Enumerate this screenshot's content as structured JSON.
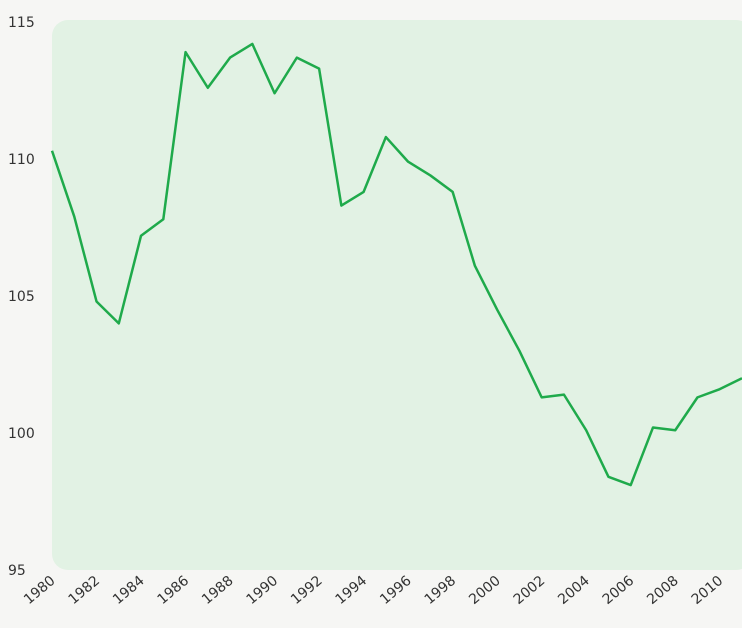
{
  "chart_data": {
    "type": "line",
    "x": [
      1980,
      1981,
      1982,
      1983,
      1984,
      1985,
      1986,
      1987,
      1988,
      1989,
      1990,
      1991,
      1992,
      1993,
      1994,
      1995,
      1996,
      1997,
      1998,
      1999,
      2000,
      2001,
      2002,
      2003,
      2004,
      2005,
      2006,
      2007,
      2008,
      2009,
      2010,
      2011
    ],
    "series": [
      {
        "color": "#1faa4b",
        "values": [
          110.3,
          107.9,
          104.8,
          104.0,
          107.2,
          107.8,
          113.9,
          112.6,
          113.7,
          114.2,
          112.4,
          113.7,
          113.3,
          108.3,
          108.8,
          110.8,
          109.9,
          109.4,
          108.8,
          106.1,
          104.5,
          103.0,
          101.3,
          101.4,
          100.1,
          98.4,
          98.1,
          100.2,
          100.1,
          101.3,
          101.6,
          102.0
        ]
      }
    ],
    "xlim": [
      1980,
      2011
    ],
    "xticks": [
      1980,
      1982,
      1984,
      1986,
      1988,
      1990,
      1992,
      1994,
      1996,
      1998,
      2000,
      2002,
      2004,
      2006,
      2008,
      2010
    ],
    "ylim": [
      95,
      115
    ],
    "yticks": [
      95,
      100,
      105,
      110,
      115
    ]
  }
}
